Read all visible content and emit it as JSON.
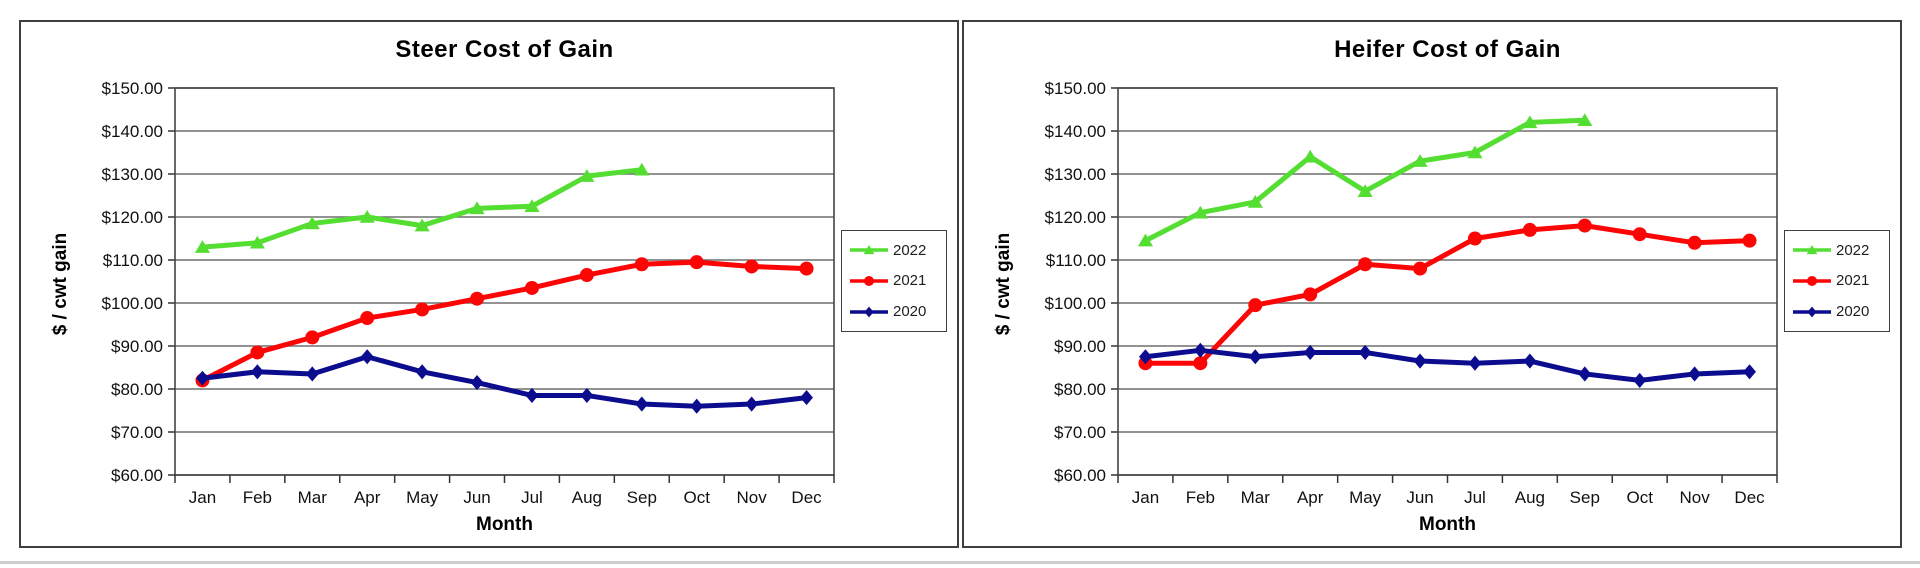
{
  "colors": {
    "series_2022": "#54de32",
    "series_2021": "#fb0505",
    "series_2020": "#0c0c8e",
    "gridline": "#6f6f6f",
    "panel_border": "#3f3f3f",
    "text": "#000000"
  },
  "chart_data": [
    {
      "type": "line",
      "title": "Steer Cost of Gain",
      "ylabel": "$ / cwt gain",
      "xlabel": "Month",
      "categories": [
        "Jan",
        "Feb",
        "Mar",
        "Apr",
        "May",
        "Jun",
        "Jul",
        "Aug",
        "Sep",
        "Oct",
        "Nov",
        "Dec"
      ],
      "ylim": [
        60,
        150
      ],
      "ytick_step": 10,
      "ytick_labels": [
        "$150.00",
        "$140.00",
        "$130.00",
        "$120.00",
        "$110.00",
        "$100.00",
        "$90.00",
        "$80.00",
        "$70.00",
        "$60.00"
      ],
      "grid": "horizontal",
      "legend_position": "right-outside",
      "series": [
        {
          "name": "2022",
          "color": "#54de32",
          "marker": "triangle",
          "values": [
            113,
            114,
            118.5,
            120,
            118,
            122,
            122.5,
            129.5,
            131,
            null,
            null,
            null
          ]
        },
        {
          "name": "2021",
          "color": "#fb0505",
          "marker": "circle",
          "values": [
            82,
            88.5,
            92,
            96.5,
            98.5,
            101,
            103.5,
            106.5,
            109,
            109.5,
            108.5,
            108
          ]
        },
        {
          "name": "2020",
          "color": "#0c0c8e",
          "marker": "diamond",
          "values": [
            82.5,
            84,
            83.5,
            87.5,
            84,
            81.5,
            78.5,
            78.5,
            76.5,
            76,
            76.5,
            78
          ]
        }
      ]
    },
    {
      "type": "line",
      "title": "Heifer Cost of Gain",
      "ylabel": "$ / cwt gain",
      "xlabel": "Month",
      "categories": [
        "Jan",
        "Feb",
        "Mar",
        "Apr",
        "May",
        "Jun",
        "Jul",
        "Aug",
        "Sep",
        "Oct",
        "Nov",
        "Dec"
      ],
      "ylim": [
        60,
        150
      ],
      "ytick_step": 10,
      "ytick_labels": [
        "$150.00",
        "$140.00",
        "$130.00",
        "$120.00",
        "$110.00",
        "$100.00",
        "$90.00",
        "$80.00",
        "$70.00",
        "$60.00"
      ],
      "grid": "horizontal",
      "legend_position": "right-outside",
      "series": [
        {
          "name": "2022",
          "color": "#54de32",
          "marker": "triangle",
          "values": [
            114.5,
            121,
            123.5,
            134,
            126,
            133,
            135,
            142,
            142.5,
            null,
            null,
            null
          ]
        },
        {
          "name": "2021",
          "color": "#fb0505",
          "marker": "circle",
          "values": [
            86,
            86,
            99.5,
            102,
            109,
            108,
            115,
            117,
            118,
            116,
            114,
            114.5
          ]
        },
        {
          "name": "2020",
          "color": "#0c0c8e",
          "marker": "diamond",
          "values": [
            87.5,
            89,
            87.5,
            88.5,
            88.5,
            86.5,
            86,
            86.5,
            83.5,
            82,
            83.5,
            84
          ]
        }
      ]
    }
  ]
}
